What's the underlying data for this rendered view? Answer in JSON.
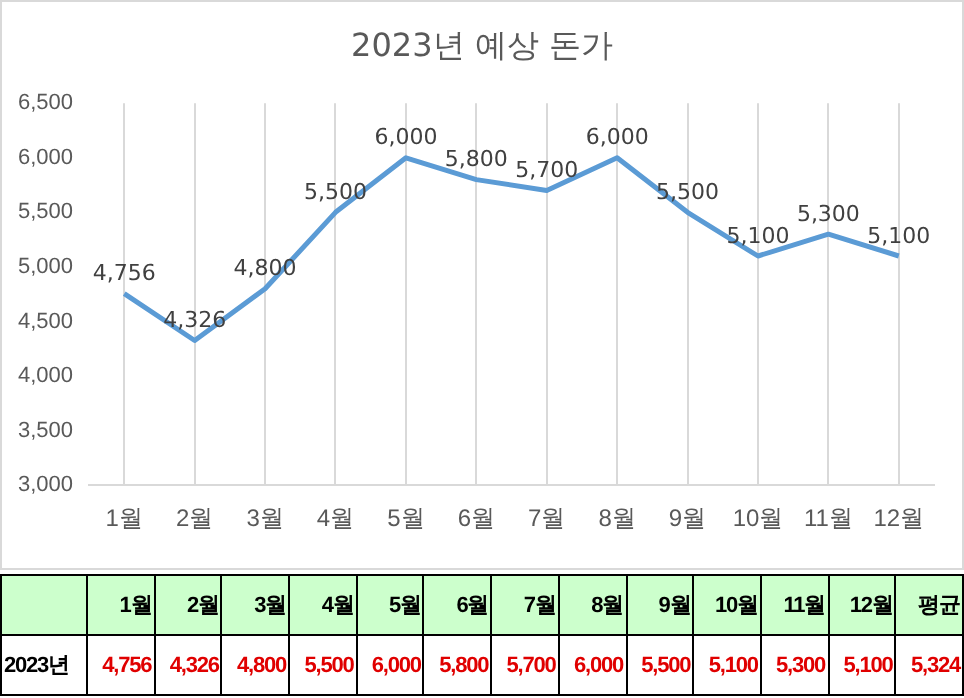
{
  "chart_data": {
    "type": "line",
    "title": "2023년 예상 돈가",
    "categories": [
      "1월",
      "2월",
      "3월",
      "4월",
      "5월",
      "6월",
      "7월",
      "8월",
      "9월",
      "10월",
      "11월",
      "12월"
    ],
    "series": [
      {
        "color": "#5b9bd5",
        "values": [
          4756,
          4326,
          4800,
          5500,
          6000,
          5800,
          5700,
          6000,
          5500,
          5100,
          5300,
          5100
        ],
        "value_labels": [
          "4,756",
          "4,326",
          "4,800",
          "5,500",
          "6,000",
          "5,800",
          "5,700",
          "6,000",
          "5,500",
          "5,100",
          "5,300",
          "5,100"
        ]
      }
    ],
    "ylim": [
      3000,
      6500
    ],
    "yticks": [
      {
        "value": 3000,
        "label": "3,000"
      },
      {
        "value": 3500,
        "label": "3,500"
      },
      {
        "value": 4000,
        "label": "4,000"
      },
      {
        "value": 4500,
        "label": "4,500"
      },
      {
        "value": 5000,
        "label": "5,000"
      },
      {
        "value": 5500,
        "label": "5,500"
      },
      {
        "value": 6000,
        "label": "6,000"
      },
      {
        "value": 6500,
        "label": "6,500"
      }
    ],
    "grid": "x",
    "marker": "none",
    "line_style": "solid",
    "annotations": [
      "2023년",
      "평균",
      "5,324"
    ]
  }
}
